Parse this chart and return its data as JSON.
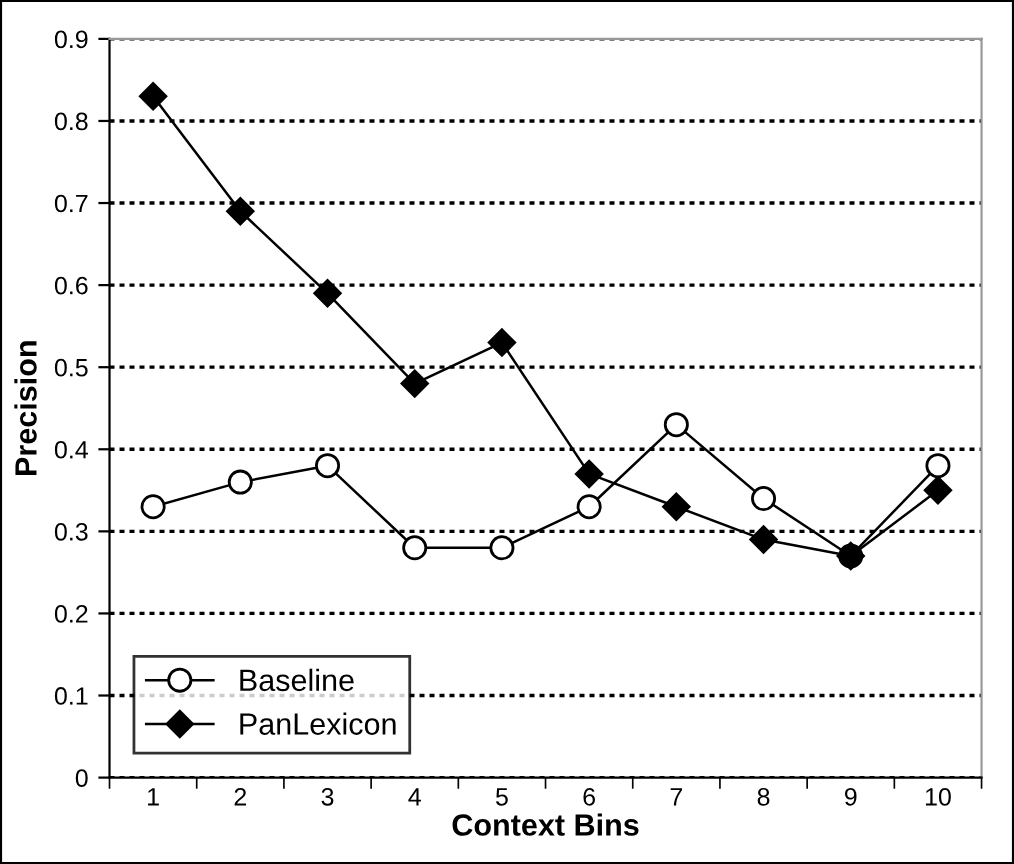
{
  "chart_data": {
    "type": "line",
    "xlabel": "Context Bins",
    "ylabel": "Precision",
    "categories": [
      "1",
      "2",
      "3",
      "4",
      "5",
      "6",
      "7",
      "8",
      "9",
      "10"
    ],
    "series": [
      {
        "name": "Baseline",
        "color": "#000000",
        "marker": "circle",
        "values": [
          0.33,
          0.36,
          0.38,
          0.28,
          0.28,
          0.33,
          0.43,
          0.34,
          0.27,
          0.38
        ]
      },
      {
        "name": "PanLexicon",
        "color": "#000000",
        "marker": "diamond",
        "values": [
          0.83,
          0.69,
          0.59,
          0.48,
          0.53,
          0.37,
          0.33,
          0.29,
          0.27,
          0.35
        ]
      }
    ],
    "ylim": [
      0,
      0.9
    ],
    "yticks": [
      0,
      0.1,
      0.2,
      0.3,
      0.4,
      0.5,
      0.6,
      0.7,
      0.8,
      0.9
    ],
    "grid": "y",
    "legend": "bottom left",
    "line_style": "solid"
  }
}
